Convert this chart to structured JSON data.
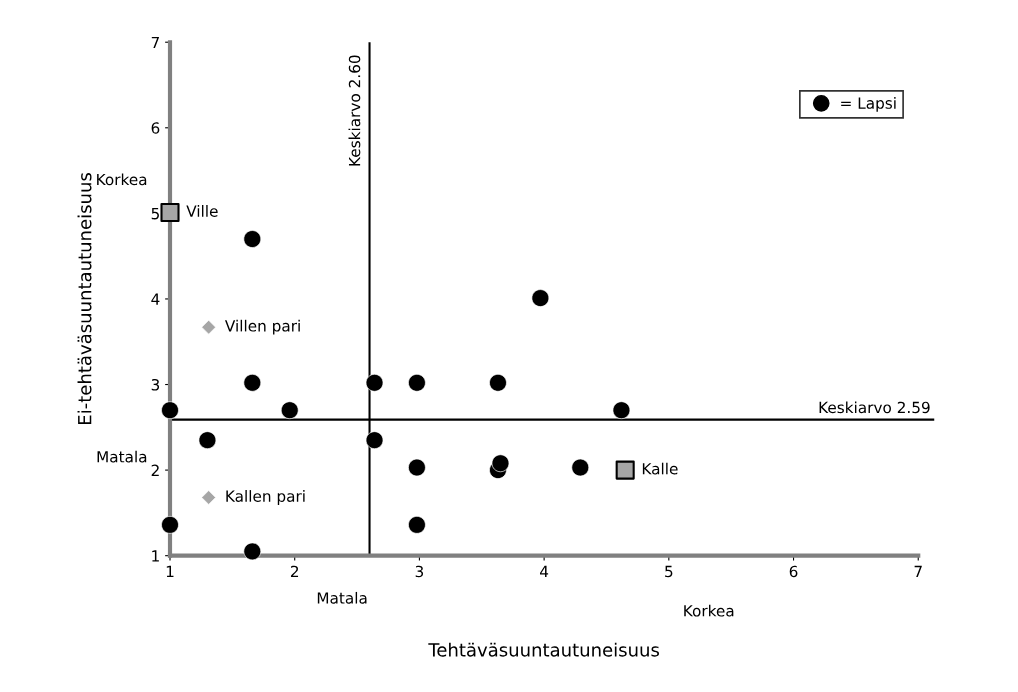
{
  "chart_data": {
    "type": "scatter",
    "xlabel": "Tehtäväsuuntautuneisuus",
    "ylabel": "Ei-tehtäväsuuntautuneisuus",
    "xlim": [
      1,
      7
    ],
    "ylim": [
      1,
      7
    ],
    "xticks": [
      1,
      2,
      3,
      4,
      5,
      6,
      7
    ],
    "yticks": [
      1,
      2,
      3,
      4,
      5,
      6,
      7
    ],
    "grid": false,
    "legend": "top right",
    "series": [
      {
        "name": "= Lapsi",
        "color": "#000000",
        "marker": "circle",
        "x": [
          1.0,
          1.66,
          1.66,
          1.96,
          1.3,
          1.0,
          1.66,
          2.64,
          2.64,
          2.98,
          2.98,
          2.98,
          3.63,
          3.97,
          4.62,
          4.29,
          3.63,
          3.65
        ],
        "values": [
          2.7,
          4.7,
          3.02,
          2.7,
          2.35,
          1.36,
          1.05,
          3.02,
          2.35,
          3.02,
          2.03,
          1.36,
          3.02,
          4.01,
          2.7,
          2.03,
          2.0,
          2.08
        ]
      },
      {
        "name": "Ville",
        "color": "#a6a6a6",
        "marker": "square",
        "x": [
          1.0
        ],
        "values": [
          5.01
        ]
      },
      {
        "name": "Villen pari",
        "color": "#a6a6a6",
        "marker": "diamond",
        "x": [
          1.31
        ],
        "values": [
          3.67
        ]
      },
      {
        "name": "Kallen pari",
        "color": "#a6a6a6",
        "marker": "diamond",
        "x": [
          1.31
        ],
        "values": [
          1.68
        ]
      },
      {
        "name": "Kalle",
        "color": "#a6a6a6",
        "marker": "square",
        "x": [
          4.65
        ],
        "values": [
          2.0
        ]
      }
    ],
    "ref_lines": [
      {
        "axis": "x",
        "value": 2.6,
        "label": "Keskiarvo 2.60",
        "color": "#000000"
      },
      {
        "axis": "y",
        "value": 2.59,
        "label": "Keskiarvo 2.59",
        "color": "#000000"
      }
    ],
    "annotations": [
      "Korkea",
      "Matala",
      "Matala",
      "Korkea"
    ]
  }
}
